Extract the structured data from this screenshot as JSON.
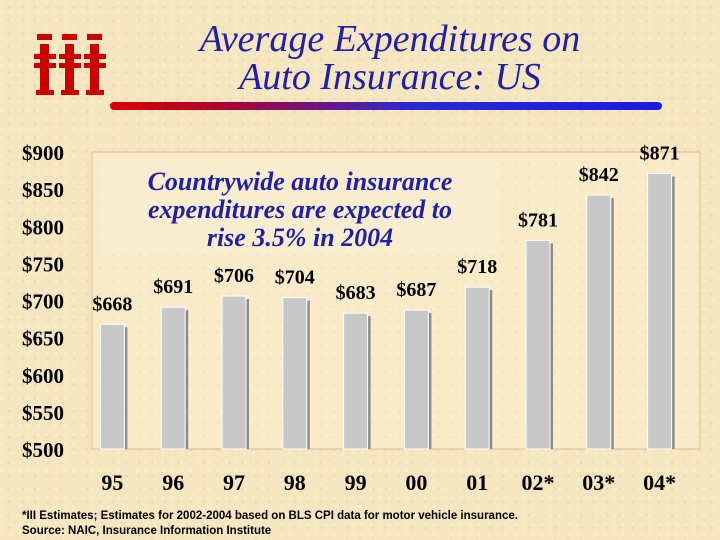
{
  "slide": {
    "title_line1": "Average Expenditures on",
    "title_line2": "Auto Insurance: US",
    "logo_text": "iii",
    "footnote_line1": "*III Estimates; Estimates for 2002-2004 based on BLS CPI data for motor vehicle insurance.",
    "footnote_line2": "Source: NAIC, Insurance Information Institute"
  },
  "colors": {
    "title": "#1f1fa8",
    "logo": "#cc0000",
    "bar": "#c8c8c8",
    "bar_edge": "#ffffff",
    "bar_shadow": "#8c8c8c"
  },
  "chart_data": {
    "type": "bar",
    "categories": [
      "95",
      "96",
      "97",
      "98",
      "99",
      "00",
      "01",
      "02*",
      "03*",
      "04*"
    ],
    "values": [
      668,
      691,
      706,
      704,
      683,
      687,
      718,
      781,
      842,
      871
    ],
    "data_labels": [
      "$668",
      "$691",
      "$706",
      "$704",
      "$683",
      "$687",
      "$718",
      "$781",
      "$842",
      "$871"
    ],
    "ylim": [
      500,
      900
    ],
    "yticks": [
      500,
      550,
      600,
      650,
      700,
      750,
      800,
      850,
      900
    ],
    "ytick_labels": [
      "$500",
      "$550",
      "$600",
      "$650",
      "$700",
      "$750",
      "$800",
      "$850",
      "$900"
    ],
    "grid": false,
    "annotation": {
      "line1": "Countrywide auto insurance",
      "line2": "expenditures are expected to",
      "line3": "rise 3.5% in 2004"
    }
  }
}
